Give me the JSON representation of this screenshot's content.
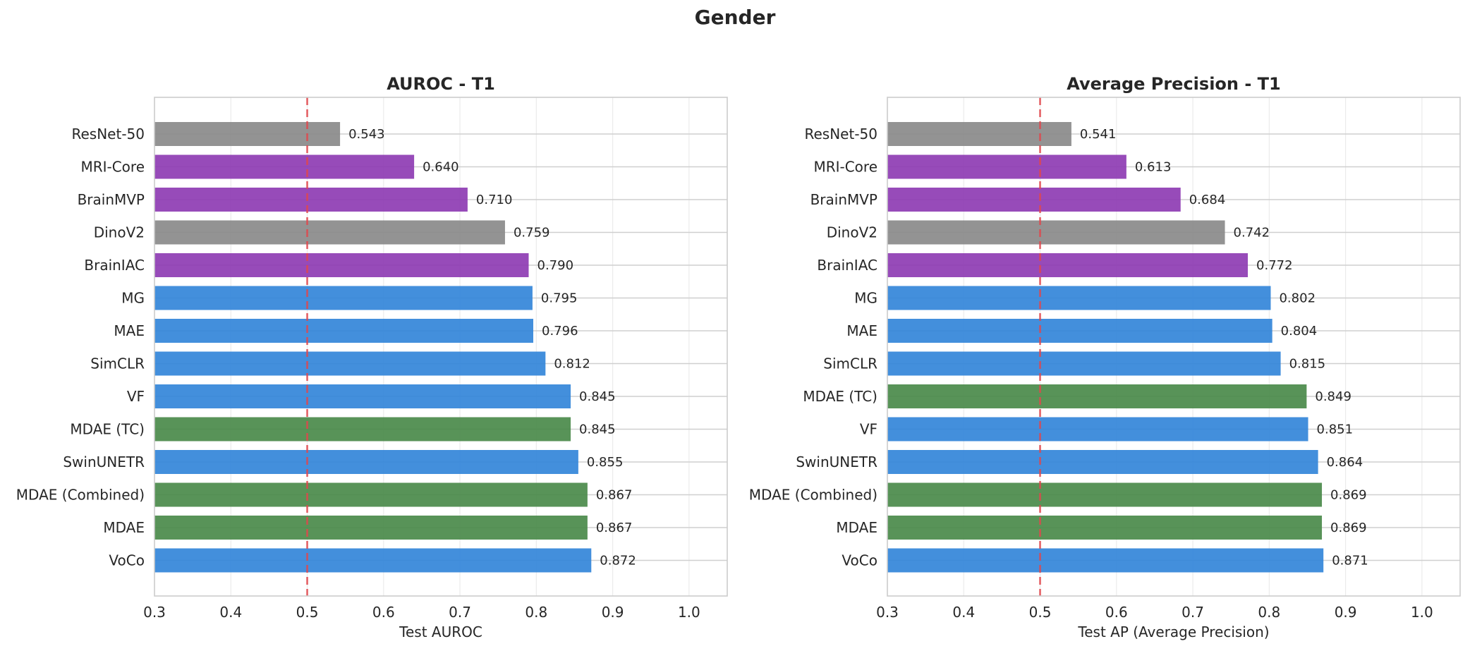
{
  "figure_title": "Gender",
  "colors": {
    "baseline": "#8a8a8a",
    "medical_fm": "#8e3cb3",
    "ssl": "#3385d9",
    "mdae": "#4a8a4a",
    "reference_line": "#e0474c"
  },
  "chart_data": [
    {
      "type": "bar",
      "orientation": "horizontal",
      "title": "AUROC - T1",
      "xlabel": "Test AUROC",
      "ylabel": "",
      "xlim": [
        0.3,
        1.05
      ],
      "xticks": [
        "0.3",
        "0.4",
        "0.5",
        "0.6",
        "0.7",
        "0.8",
        "0.9",
        "1.0"
      ],
      "reference_line": 0.5,
      "grid": true,
      "categories": [
        "ResNet-50",
        "MRI-Core",
        "BrainMVP",
        "DinoV2",
        "BrainIAC",
        "MG",
        "MAE",
        "SimCLR",
        "VF",
        "MDAE (TC)",
        "SwinUNETR",
        "MDAE (Combined)",
        "MDAE",
        "VoCo"
      ],
      "values": [
        0.543,
        0.64,
        0.71,
        0.759,
        0.79,
        0.795,
        0.796,
        0.812,
        0.845,
        0.845,
        0.855,
        0.867,
        0.867,
        0.872
      ],
      "labels": [
        "0.543",
        "0.640",
        "0.710",
        "0.759",
        "0.790",
        "0.795",
        "0.796",
        "0.812",
        "0.845",
        "0.845",
        "0.855",
        "0.867",
        "0.867",
        "0.872"
      ],
      "bar_groups": [
        "baseline",
        "medical_fm",
        "medical_fm",
        "baseline",
        "medical_fm",
        "ssl",
        "ssl",
        "ssl",
        "ssl",
        "mdae",
        "ssl",
        "mdae",
        "mdae",
        "ssl"
      ]
    },
    {
      "type": "bar",
      "orientation": "horizontal",
      "title": "Average Precision - T1",
      "xlabel": "Test AP (Average Precision)",
      "ylabel": "",
      "xlim": [
        0.3,
        1.05
      ],
      "xticks": [
        "0.3",
        "0.4",
        "0.5",
        "0.6",
        "0.7",
        "0.8",
        "0.9",
        "1.0"
      ],
      "reference_line": 0.5,
      "grid": true,
      "categories": [
        "ResNet-50",
        "MRI-Core",
        "BrainMVP",
        "DinoV2",
        "BrainIAC",
        "MG",
        "MAE",
        "SimCLR",
        "MDAE (TC)",
        "VF",
        "SwinUNETR",
        "MDAE (Combined)",
        "MDAE",
        "VoCo"
      ],
      "values": [
        0.541,
        0.613,
        0.684,
        0.742,
        0.772,
        0.802,
        0.804,
        0.815,
        0.849,
        0.851,
        0.864,
        0.869,
        0.869,
        0.871
      ],
      "labels": [
        "0.541",
        "0.613",
        "0.684",
        "0.742",
        "0.772",
        "0.802",
        "0.804",
        "0.815",
        "0.849",
        "0.851",
        "0.864",
        "0.869",
        "0.869",
        "0.871"
      ],
      "bar_groups": [
        "baseline",
        "medical_fm",
        "medical_fm",
        "baseline",
        "medical_fm",
        "ssl",
        "ssl",
        "ssl",
        "mdae",
        "ssl",
        "ssl",
        "mdae",
        "mdae",
        "ssl"
      ]
    }
  ]
}
